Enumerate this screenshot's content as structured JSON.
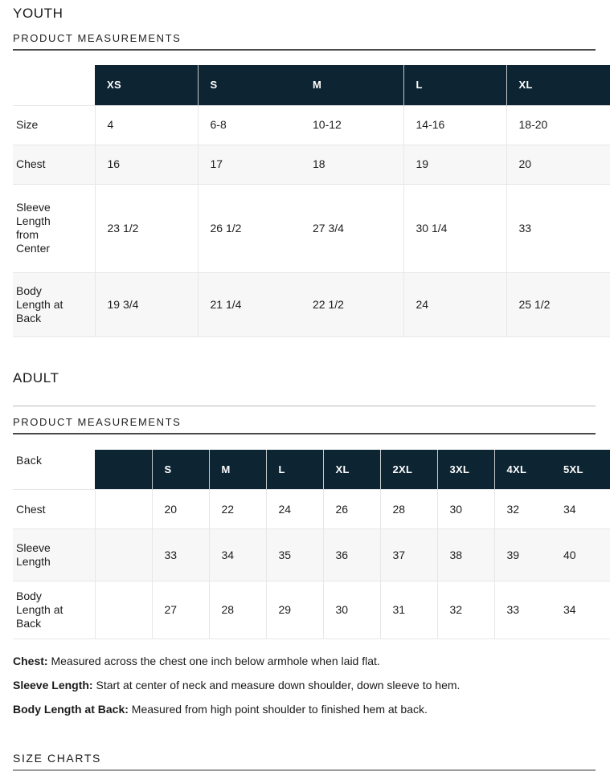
{
  "youth": {
    "heading": "YOUTH",
    "subheading": "PRODUCT MEASUREMENTS",
    "table": {
      "columns": [
        "XS",
        "S",
        "M",
        "L",
        "XL"
      ],
      "missing_divider_column": 2,
      "rows": [
        {
          "label": "Size",
          "values": [
            "4",
            "6-8",
            "10-12",
            "14-16",
            "18-20"
          ]
        },
        {
          "label": "Chest",
          "values": [
            "16",
            "17",
            "18",
            "19",
            "20"
          ]
        },
        {
          "label": "Sleeve Length from Center",
          "values": [
            "23 1/2",
            "26 1/2",
            "27 3/4",
            "30 1/4",
            "33"
          ]
        },
        {
          "label": "Body Length at Back",
          "values": [
            "19 3/4",
            "21 1/4",
            "22 1/2",
            "24",
            "25 1/2"
          ]
        }
      ]
    }
  },
  "adult": {
    "heading": "ADULT",
    "subheading": "PRODUCT MEASUREMENTS",
    "table": {
      "corner_label": "Back",
      "columns": [
        "",
        "S",
        "M",
        "L",
        "XL",
        "2XL",
        "3XL",
        "4XL",
        "5XL"
      ],
      "missing_divider_column": 8,
      "rows": [
        {
          "label": "Chest",
          "values": [
            "",
            "20",
            "22",
            "24",
            "26",
            "28",
            "30",
            "32",
            "34"
          ]
        },
        {
          "label": "Sleeve Length",
          "values": [
            "",
            "33",
            "34",
            "35",
            "36",
            "37",
            "38",
            "39",
            "40"
          ]
        },
        {
          "label": "Body Length at Back",
          "values": [
            "",
            "27",
            "28",
            "29",
            "30",
            "31",
            "32",
            "33",
            "34"
          ]
        }
      ]
    }
  },
  "footnotes": [
    {
      "term": "Chest:",
      "definition": "Measured across the chest one inch below armhole when laid flat."
    },
    {
      "term": "Sleeve Length:",
      "definition": "Start at center of neck and measure down shoulder, down sleeve to hem."
    },
    {
      "term": "Body Length at Back:",
      "definition": "Measured from high point shoulder to finished hem at back."
    }
  ],
  "size_charts_heading": "SIZE CHARTS",
  "colors": {
    "header_background": "#0d2432",
    "header_text": "#ffffff",
    "row_stripe": "#f7f7f7",
    "cell_border": "#e7e7e7",
    "header_divider": "#c6cacd",
    "body_text": "#1d1d1d"
  }
}
